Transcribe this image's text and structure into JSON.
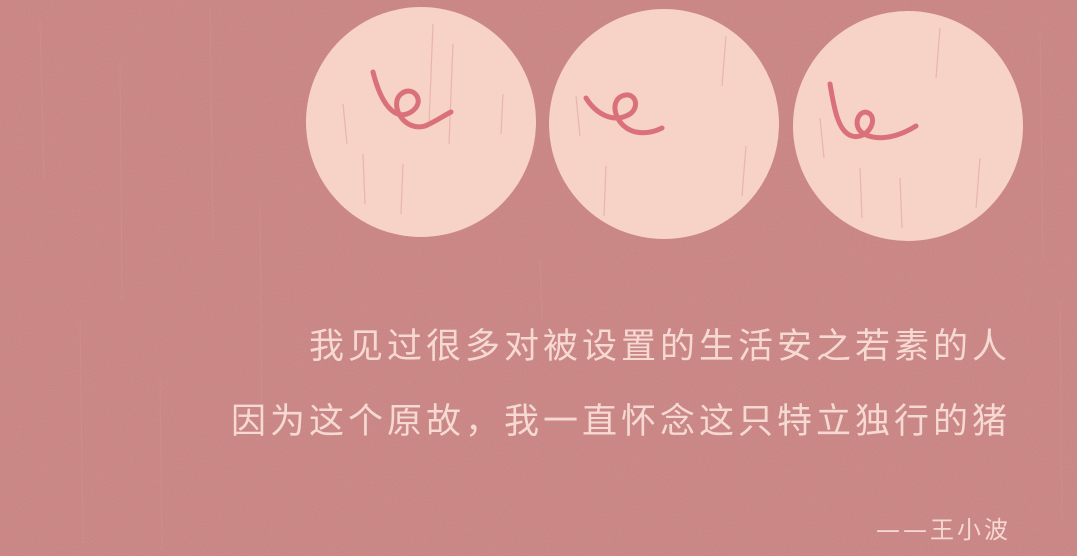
{
  "colors": {
    "background": "#c6807f",
    "circle": "#f7d2c6",
    "tail": "#d9707a",
    "text": "#f6d9d2"
  },
  "illustration": {
    "circles": [
      {
        "name": "pig-tail-circle-1",
        "icon": "curly-pig-tail"
      },
      {
        "name": "pig-tail-circle-2",
        "icon": "curly-pig-tail"
      },
      {
        "name": "pig-tail-circle-3",
        "icon": "curly-pig-tail"
      }
    ]
  },
  "quote": {
    "line1": "我见过很多对被设置的生活安之若素的人",
    "line2": "因为这个原故，我一直怀念这只特立独行的猪",
    "author": "——王小波"
  }
}
